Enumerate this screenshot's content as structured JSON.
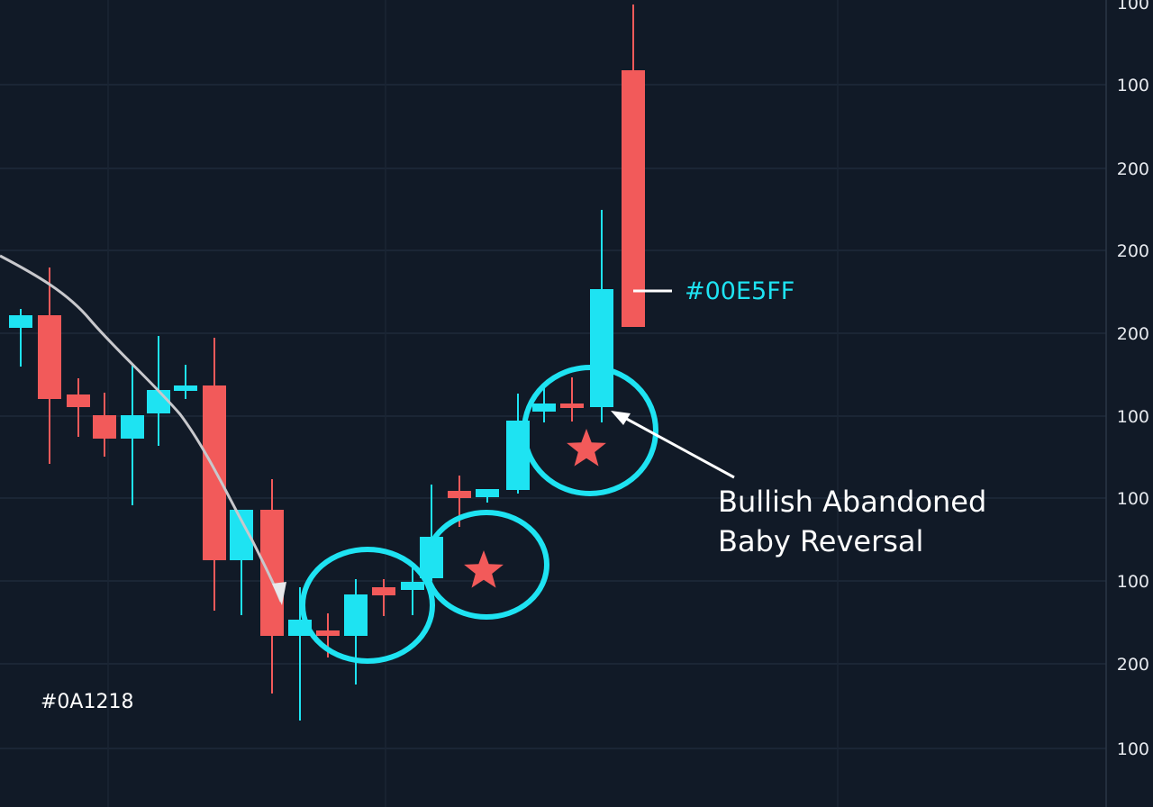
{
  "axis_labels": [
    "100",
    "100",
    "200",
    "200",
    "200",
    "100",
    "100",
    "100",
    "200",
    "100"
  ],
  "annotation": {
    "lines": [
      "Bullish Abandoned",
      "Baby Reversal"
    ]
  },
  "color_labels": {
    "cyan": "#00E5FF",
    "background": "#0A1218"
  }
}
